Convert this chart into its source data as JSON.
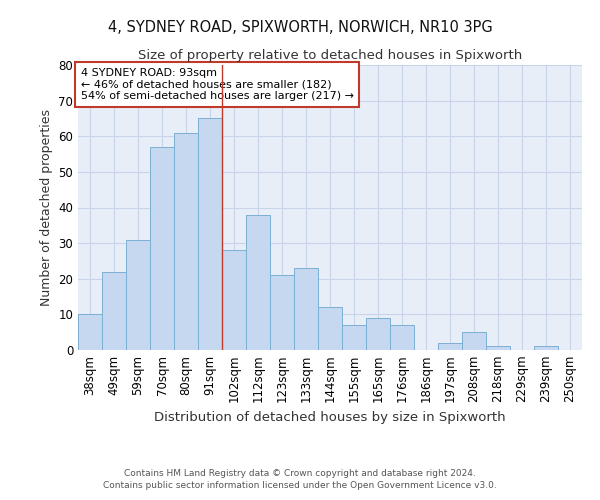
{
  "title1": "4, SYDNEY ROAD, SPIXWORTH, NORWICH, NR10 3PG",
  "title2": "Size of property relative to detached houses in Spixworth",
  "xlabel": "Distribution of detached houses by size in Spixworth",
  "ylabel": "Number of detached properties",
  "bar_labels": [
    "38sqm",
    "49sqm",
    "59sqm",
    "70sqm",
    "80sqm",
    "91sqm",
    "102sqm",
    "112sqm",
    "123sqm",
    "133sqm",
    "144sqm",
    "155sqm",
    "165sqm",
    "176sqm",
    "186sqm",
    "197sqm",
    "208sqm",
    "218sqm",
    "229sqm",
    "239sqm",
    "250sqm"
  ],
  "bar_values": [
    10,
    22,
    31,
    57,
    61,
    65,
    28,
    38,
    21,
    23,
    12,
    7,
    9,
    7,
    0,
    2,
    5,
    1,
    0,
    1,
    0
  ],
  "bar_color": "#c5d8f0",
  "bar_edge_color": "#7bafd4",
  "grid_color": "#c8d4e8",
  "bg_color": "#e8eef8",
  "vline_x": 5.5,
  "vline_color": "#c0392b",
  "annotation_text": "4 SYDNEY ROAD: 93sqm\n← 46% of detached houses are smaller (182)\n54% of semi-detached houses are larger (217) →",
  "annotation_box_color": "#ffffff",
  "annotation_box_edge": "#c0392b",
  "ylim": [
    0,
    80
  ],
  "yticks": [
    0,
    10,
    20,
    30,
    40,
    50,
    60,
    70,
    80
  ],
  "footer": "Contains HM Land Registry data © Crown copyright and database right 2024.\nContains public sector information licensed under the Open Government Licence v3.0.",
  "title_fontsize": 10.5,
  "subtitle_fontsize": 9.5,
  "tick_fontsize": 8.5,
  "ylabel_fontsize": 9,
  "xlabel_fontsize": 9.5
}
